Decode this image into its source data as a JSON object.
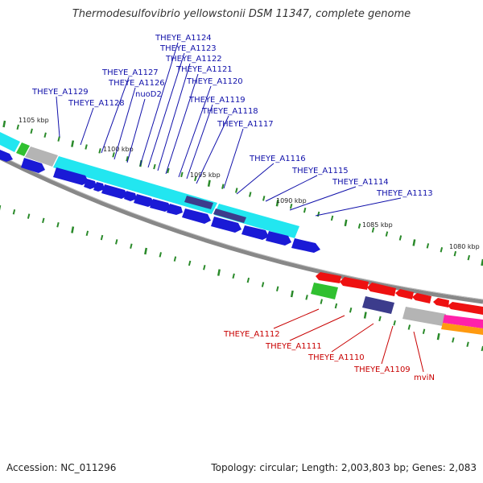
{
  "title": "Thermodesulfovibrio yellowstonii DSM 11347, complete genome",
  "footer": {
    "accession": "Accession: NC_011296",
    "summary": "Topology: circular; Length: 2,003,803 bp; Genes: 2,083"
  },
  "colors": {
    "blue_gene": "#1a1ad6",
    "cyan_gene": "#22e6f0",
    "red_gene": "#ee1111",
    "purple_gene": "#3c3c8c",
    "green_gene": "#30c030",
    "gray_gene": "#b4b4b4",
    "magenta_gene": "#ff22aa",
    "orange_gene": "#ff9a10",
    "backbone": "#888888",
    "tick": "#2a8a2a",
    "label_blue": "#1010aa",
    "label_red": "#c80000"
  },
  "scale_labels": [
    "1105 kbp",
    "1100 kbp",
    "1095 kbp",
    "1090 kbp",
    "1085 kbp",
    "1080 kbp"
  ],
  "upper_labels": [
    "THEYE_A1129",
    "THEYE_A1128",
    "THEYE_A1127",
    "THEYE_A1126",
    "nuoD2",
    "THEYE_A1124",
    "THEYE_A1123",
    "THEYE_A1122",
    "THEYE_A1121",
    "THEYE_A1120",
    "THEYE_A1119",
    "THEYE_A1118",
    "THEYE_A1117",
    "THEYE_A1116",
    "THEYE_A1115",
    "THEYE_A1114",
    "THEYE_A1113"
  ],
  "lower_labels": [
    "THEYE_A1112",
    "THEYE_A1111",
    "THEYE_A1110",
    "THEYE_A1109",
    "mviN"
  ]
}
